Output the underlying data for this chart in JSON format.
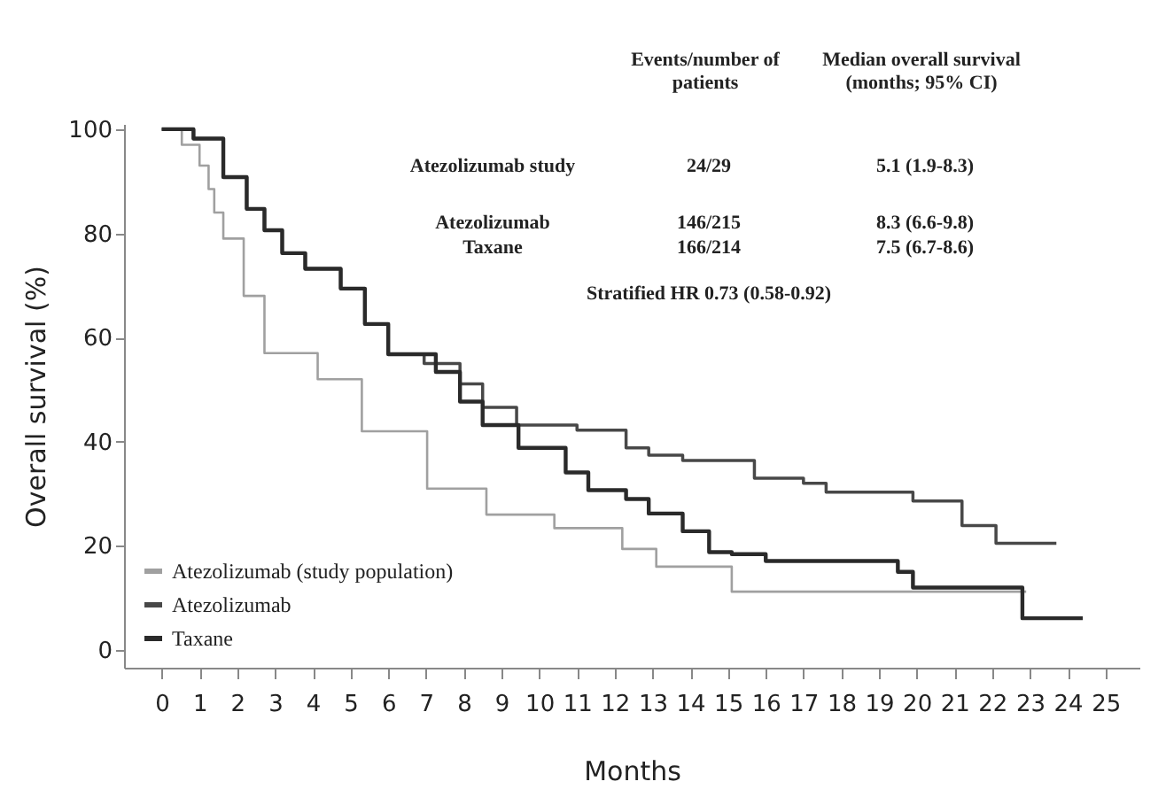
{
  "chart_data": {
    "type": "step",
    "xlabel": "Months",
    "ylabel": "Overall survival (%)",
    "xlim": [
      -1,
      25.9
    ],
    "ylim": [
      -3.4,
      101
    ],
    "xticks": [
      0,
      1,
      2,
      3,
      4,
      5,
      6,
      7,
      8,
      9,
      10,
      11,
      12,
      13,
      14,
      15,
      16,
      17,
      18,
      19,
      20,
      21,
      22,
      23,
      24,
      25
    ],
    "yticks": [
      0,
      20,
      40,
      60,
      80,
      100
    ],
    "grid": false,
    "legend": "bottom left",
    "line_style": "solid",
    "marker": "none",
    "series": [
      {
        "name": "Atezolizumab (study population)",
        "color": "#a0a0a0",
        "x": [
          0,
          0.53,
          1.0,
          1.24,
          1.39,
          1.63,
          2.17,
          2.72,
          4.13,
          5.3,
          7.03,
          8.6,
          10.4,
          12.2,
          13.1,
          15.1,
          22.9
        ],
        "values": [
          100,
          97,
          93,
          88.5,
          84,
          79,
          68,
          57,
          52,
          42,
          31,
          26,
          23.4,
          19.4,
          16,
          11.2,
          11.2
        ]
      },
      {
        "name": "Atezolizumab",
        "color": "#484848",
        "x": [
          0,
          0.84,
          1.63,
          2.25,
          2.72,
          3.19,
          3.8,
          4.74,
          5.38,
          6.0,
          6.95,
          7.9,
          8.5,
          9.4,
          11.0,
          12.3,
          12.9,
          13.8,
          15.7,
          17.0,
          17.6,
          19.9,
          21.2,
          22.1,
          23.7
        ],
        "values": [
          100,
          98.2,
          90.8,
          84.7,
          80.6,
          76.2,
          73.2,
          69.4,
          62.6,
          56.8,
          55,
          51.1,
          46.6,
          43.2,
          42.2,
          38.8,
          37.4,
          36.4,
          33,
          32,
          30.3,
          28.6,
          23.9,
          20.5,
          20.5
        ]
      },
      {
        "name": "Taxane",
        "color": "#2a2a2a",
        "x": [
          0,
          0.84,
          1.63,
          2.25,
          2.72,
          3.19,
          3.8,
          4.74,
          5.38,
          6.0,
          7.26,
          7.9,
          8.5,
          9.45,
          10.7,
          11.3,
          12.3,
          12.9,
          13.8,
          14.5,
          15.1,
          16.0,
          19.5,
          19.9,
          22.8,
          24.4
        ],
        "values": [
          100,
          98.2,
          90.8,
          84.7,
          80.6,
          76.2,
          73.2,
          69.4,
          62.6,
          56.8,
          53.4,
          47.7,
          43.2,
          38.8,
          34.1,
          30.7,
          29,
          26.2,
          22.8,
          18.8,
          18.4,
          17.1,
          15,
          12,
          6.1,
          6.1
        ]
      }
    ],
    "annotations": [
      "Events/number of patients",
      "Median overall survival (months; 95% CI)",
      "Atezolizumab study",
      "24/29",
      "5.1 (1.9-8.3)",
      "Atezolizumab",
      "146/215",
      "8.3 (6.6-9.8)",
      "Taxane",
      "166/214",
      "7.5 (6.7-8.6)",
      "Stratified HR 0.73 (0.58-0.92)"
    ]
  }
}
